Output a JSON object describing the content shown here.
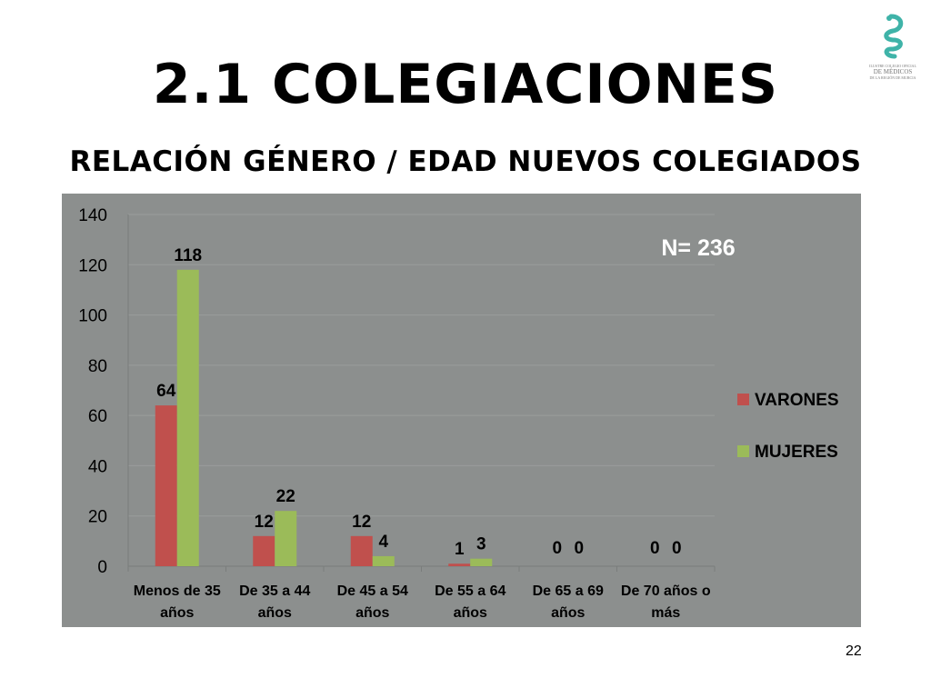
{
  "slide": {
    "title": "2.1 COLEGIACIONES",
    "subtitle": "RELACIÓN GÉNERO / EDAD NUEVOS COLEGIADOS",
    "page_number": "22"
  },
  "logo": {
    "icon": "caduceus-serpent-icon",
    "line1": "ILUSTRE COLEGIO OFICIAL",
    "line2": "DE MÉDICOS",
    "line3": "DE LA REGIÓN DE MURCIA",
    "color": "#3fb3a8"
  },
  "chart_data": {
    "type": "bar",
    "title": "",
    "xlabel": "",
    "ylabel": "",
    "categories": [
      [
        "Menos de 35",
        "años"
      ],
      [
        "De 35 a 44",
        "años"
      ],
      [
        "De 45 a 54",
        "años"
      ],
      [
        "De 55 a 64",
        "años"
      ],
      [
        "De 65 a 69",
        "años"
      ],
      [
        "De 70 años o",
        "más"
      ]
    ],
    "series": [
      {
        "name": "VARONES",
        "color": "#c0504d",
        "values": [
          64,
          12,
          12,
          1,
          0,
          0
        ]
      },
      {
        "name": "MUJERES",
        "color": "#9bbb59",
        "values": [
          118,
          22,
          4,
          3,
          0,
          0
        ]
      }
    ],
    "ylim": [
      0,
      140
    ],
    "yticks": [
      0,
      20,
      40,
      60,
      80,
      100,
      120,
      140
    ],
    "grid": true,
    "legend": "right",
    "annotation": "N= 236",
    "background": "#8c8f8e"
  }
}
